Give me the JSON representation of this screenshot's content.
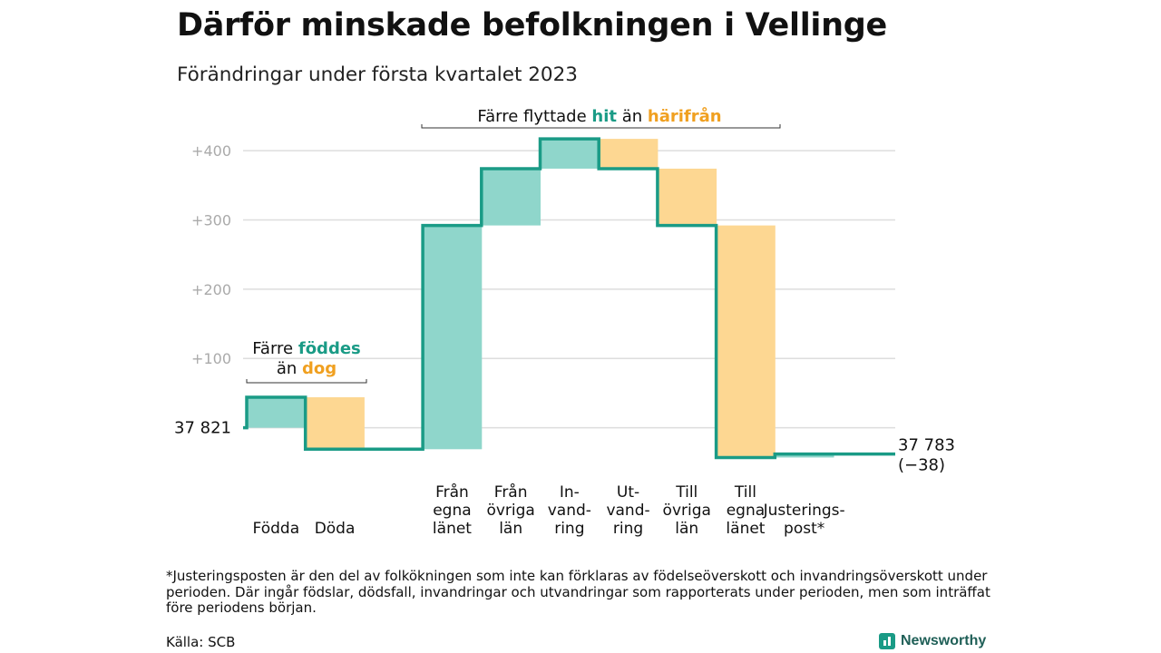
{
  "title": "Därför minskade befolkningen i Vellinge",
  "subtitle": "Förändringar under första kvartalet 2023",
  "footnote": "*Justeringsposten är den del av folkökningen som inte kan förklaras av födelseöverskott och invandringsöverskott under perioden. Där ingår födslar, dödsfall, invandringar och utvandringar som rapporterats under perioden, men som inträffat före periodens början.",
  "source": "Källa: SCB",
  "brand": "Newsworthy",
  "colors": {
    "positive_fill": "#8fd6cb",
    "negative_fill": "#fdd792",
    "line": "#1a9b86",
    "positive_text": "#1a9b86",
    "negative_text": "#f0a020",
    "grid": "#dddddd",
    "tick": "#aaaaaa"
  },
  "chart_data": {
    "type": "waterfall",
    "start_value": 37821,
    "start_label": "37 821",
    "end_label": "37 783",
    "end_change_label": "(−38)",
    "ylim": [
      -45,
      425
    ],
    "y_ticks": [
      {
        "value": 100,
        "label": "+100"
      },
      {
        "value": 200,
        "label": "+200"
      },
      {
        "value": 300,
        "label": "+300"
      },
      {
        "value": 400,
        "label": "+400"
      }
    ],
    "steps": [
      {
        "label": [
          "",
          "",
          "Födda"
        ],
        "value": 44
      },
      {
        "label": [
          "",
          "",
          "Döda"
        ],
        "value": -75
      },
      {
        "label": [],
        "value": 0
      },
      {
        "label": [
          "Från",
          "egna",
          "länet"
        ],
        "value": 323
      },
      {
        "label": [
          "Från",
          "övriga",
          "län"
        ],
        "value": 82
      },
      {
        "label": [
          "In-",
          "vand-",
          "ring"
        ],
        "value": 43
      },
      {
        "label": [
          "Ut-",
          "vand-",
          "ring"
        ],
        "value": -43
      },
      {
        "label": [
          "Till",
          "övriga",
          "län"
        ],
        "value": -82
      },
      {
        "label": [
          "Till",
          "egna",
          "länet"
        ],
        "value": -335
      },
      {
        "label": [
          "",
          "Justerings-",
          "post*"
        ],
        "value": 5
      }
    ],
    "groups": [
      {
        "name": "births",
        "lines": [
          [
            {
              "text": "Färre ",
              "tone": "plain"
            },
            {
              "text": "föddes",
              "tone": "positive"
            }
          ],
          [
            {
              "text": "än ",
              "tone": "plain"
            },
            {
              "text": "dog",
              "tone": "negative"
            }
          ]
        ]
      },
      {
        "name": "migration",
        "lines": [
          [
            {
              "text": "Färre flyttade ",
              "tone": "plain"
            },
            {
              "text": "hit",
              "tone": "positive"
            },
            {
              "text": " än ",
              "tone": "plain"
            },
            {
              "text": "härifrån",
              "tone": "negative"
            }
          ]
        ]
      }
    ]
  }
}
